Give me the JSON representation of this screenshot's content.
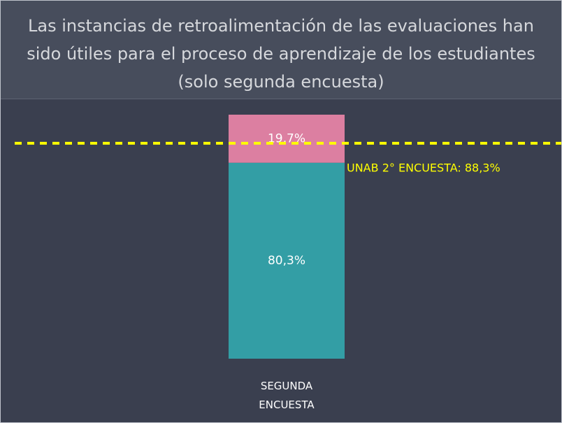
{
  "chart_data": {
    "type": "stacked_bar",
    "title": "Las instancias de retroalimentación de las evaluaciones han sido útiles para el proceso de aprendizaje de los estudiantes (solo segunda encuesta)",
    "categories": [
      "SEGUNDA ENCUESTA"
    ],
    "series": [
      {
        "color": "#339ea5",
        "values": [
          80.3
        ],
        "value_labels": [
          "80,3%"
        ]
      },
      {
        "color": "#dc7fa1",
        "values": [
          19.7
        ],
        "value_labels": [
          "19,7%"
        ]
      }
    ],
    "ylim": [
      0,
      100
    ],
    "reference_line": {
      "value": 88.3,
      "label": "UNAB 2° ENCUESTA: 88,3%",
      "color": "#ffff00"
    }
  }
}
